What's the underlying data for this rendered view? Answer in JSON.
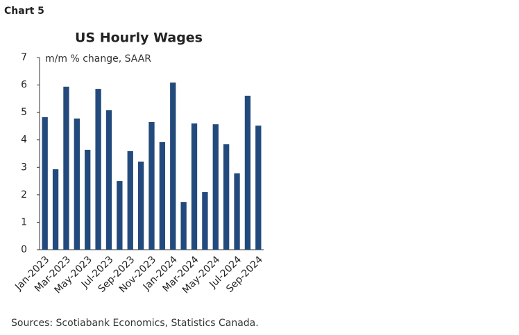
{
  "label": "Chart 5",
  "chart_data": {
    "type": "bar",
    "title": "US Hourly Wages",
    "subtitle": "m/m % change, SAAR",
    "categories": [
      "Jan-2023",
      null,
      "Mar-2023",
      null,
      "May-2023",
      null,
      "Jul-2023",
      null,
      "Sep-2023",
      null,
      "Nov-2023",
      null,
      "Jan-2024",
      null,
      "Mar-2024",
      null,
      "May-2024",
      null,
      "Jul-2024",
      null,
      "Sep-2024"
    ],
    "values": [
      4.83,
      2.93,
      5.94,
      4.78,
      3.64,
      5.86,
      5.08,
      2.5,
      3.59,
      3.21,
      4.65,
      3.92,
      6.09,
      1.74,
      4.6,
      2.1,
      4.57,
      3.84,
      2.78,
      5.61,
      4.52
    ],
    "color": "#234a7c",
    "ylim": [
      0,
      7
    ],
    "yticks": [
      0,
      1,
      2,
      3,
      4,
      5,
      6,
      7
    ],
    "grid": false
  },
  "source": "Sources: Scotiabank Economics, Statistics Canada."
}
